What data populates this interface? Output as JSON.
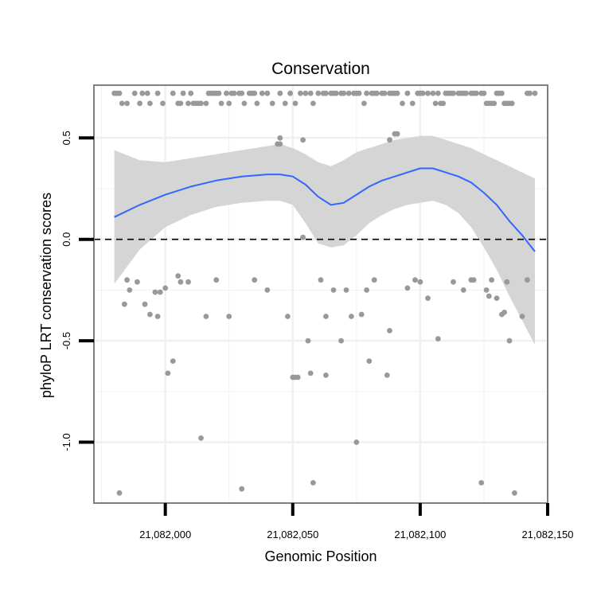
{
  "chart_data": {
    "type": "scatter",
    "title": "Conservation",
    "xlabel": "Genomic Position",
    "ylabel": "phyloP LRT conservation scores",
    "xlim": [
      21081972,
      21082150
    ],
    "ylim": [
      -1.3,
      0.76
    ],
    "x_ticks": [
      21082000,
      21082050,
      21082100,
      21082150
    ],
    "x_tick_labels": [
      "21,082,000",
      "21,082,050",
      "21,082,100",
      "21,082,150"
    ],
    "y_ticks": [
      0.5,
      0.0,
      -0.5,
      -1.0
    ],
    "y_tick_labels": [
      "0.5",
      "0.0",
      "-0.5",
      "-1.0"
    ],
    "reference_line": {
      "y": 0.0,
      "style": "dashed"
    },
    "grid": true,
    "points": [
      [
        21081980,
        0.72
      ],
      [
        21081981,
        0.72
      ],
      [
        21081982,
        0.72
      ],
      [
        21081983,
        0.67
      ],
      [
        21081985,
        0.67
      ],
      [
        21081988,
        0.72
      ],
      [
        21081990,
        0.67
      ],
      [
        21081991,
        0.72
      ],
      [
        21081993,
        0.72
      ],
      [
        21081994,
        0.67
      ],
      [
        21081997,
        0.72
      ],
      [
        21081999,
        0.67
      ],
      [
        21082003,
        0.72
      ],
      [
        21082005,
        0.67
      ],
      [
        21082006,
        0.67
      ],
      [
        21082007,
        0.72
      ],
      [
        21082009,
        0.67
      ],
      [
        21082010,
        0.72
      ],
      [
        21082011,
        0.67
      ],
      [
        21082012,
        0.67
      ],
      [
        21082013,
        0.67
      ],
      [
        21082014,
        0.67
      ],
      [
        21082016,
        0.67
      ],
      [
        21082017,
        0.72
      ],
      [
        21082018,
        0.72
      ],
      [
        21082019,
        0.72
      ],
      [
        21082020,
        0.72
      ],
      [
        21082021,
        0.72
      ],
      [
        21082022,
        0.67
      ],
      [
        21082024,
        0.72
      ],
      [
        21082025,
        0.67
      ],
      [
        21082026,
        0.72
      ],
      [
        21082027,
        0.72
      ],
      [
        21082029,
        0.72
      ],
      [
        21082030,
        0.72
      ],
      [
        21082031,
        0.67
      ],
      [
        21082033,
        0.72
      ],
      [
        21082034,
        0.72
      ],
      [
        21082035,
        0.72
      ],
      [
        21082036,
        0.67
      ],
      [
        21082038,
        0.72
      ],
      [
        21082040,
        0.72
      ],
      [
        21082042,
        0.67
      ],
      [
        21082045,
        0.72
      ],
      [
        21082047,
        0.67
      ],
      [
        21082049,
        0.72
      ],
      [
        21082051,
        0.67
      ],
      [
        21082053,
        0.72
      ],
      [
        21082055,
        0.72
      ],
      [
        21082057,
        0.72
      ],
      [
        21082058,
        0.67
      ],
      [
        21082060,
        0.72
      ],
      [
        21082062,
        0.72
      ],
      [
        21082063,
        0.72
      ],
      [
        21082065,
        0.72
      ],
      [
        21082066,
        0.72
      ],
      [
        21082067,
        0.72
      ],
      [
        21082069,
        0.72
      ],
      [
        21082070,
        0.72
      ],
      [
        21082072,
        0.72
      ],
      [
        21082074,
        0.72
      ],
      [
        21082075,
        0.72
      ],
      [
        21082076,
        0.72
      ],
      [
        21082078,
        0.67
      ],
      [
        21082079,
        0.72
      ],
      [
        21082081,
        0.72
      ],
      [
        21082082,
        0.72
      ],
      [
        21082083,
        0.72
      ],
      [
        21082085,
        0.72
      ],
      [
        21082086,
        0.72
      ],
      [
        21082088,
        0.72
      ],
      [
        21082089,
        0.72
      ],
      [
        21082090,
        0.72
      ],
      [
        21082091,
        0.72
      ],
      [
        21082093,
        0.67
      ],
      [
        21082095,
        0.72
      ],
      [
        21082097,
        0.67
      ],
      [
        21082099,
        0.72
      ],
      [
        21082100,
        0.72
      ],
      [
        21082101,
        0.72
      ],
      [
        21082103,
        0.72
      ],
      [
        21082105,
        0.72
      ],
      [
        21082106,
        0.67
      ],
      [
        21082107,
        0.72
      ],
      [
        21082108,
        0.67
      ],
      [
        21082109,
        0.67
      ],
      [
        21082110,
        0.72
      ],
      [
        21082111,
        0.72
      ],
      [
        21082112,
        0.72
      ],
      [
        21082113,
        0.72
      ],
      [
        21082115,
        0.72
      ],
      [
        21082116,
        0.72
      ],
      [
        21082117,
        0.72
      ],
      [
        21082118,
        0.72
      ],
      [
        21082120,
        0.72
      ],
      [
        21082121,
        0.72
      ],
      [
        21082122,
        0.72
      ],
      [
        21082124,
        0.72
      ],
      [
        21082125,
        0.72
      ],
      [
        21082126,
        0.67
      ],
      [
        21082127,
        0.67
      ],
      [
        21082128,
        0.67
      ],
      [
        21082129,
        0.67
      ],
      [
        21082130,
        0.72
      ],
      [
        21082131,
        0.72
      ],
      [
        21082132,
        0.72
      ],
      [
        21082133,
        0.67
      ],
      [
        21082134,
        0.67
      ],
      [
        21082135,
        0.67
      ],
      [
        21082136,
        0.67
      ],
      [
        21082142,
        0.72
      ],
      [
        21082143,
        0.72
      ],
      [
        21082145,
        0.72
      ],
      [
        21082044,
        0.47
      ],
      [
        21082045,
        0.47
      ],
      [
        21082045,
        0.5
      ],
      [
        21082054,
        0.49
      ],
      [
        21082088,
        0.49
      ],
      [
        21082090,
        0.52
      ],
      [
        21082091,
        0.52
      ],
      [
        21082054,
        0.01
      ],
      [
        21081982,
        -1.25
      ],
      [
        21081984,
        -0.32
      ],
      [
        21081985,
        -0.2
      ],
      [
        21081986,
        -0.25
      ],
      [
        21081989,
        -0.21
      ],
      [
        21081992,
        -0.32
      ],
      [
        21081994,
        -0.37
      ],
      [
        21081996,
        -0.26
      ],
      [
        21081997,
        -0.38
      ],
      [
        21081998,
        -0.26
      ],
      [
        21082000,
        -0.24
      ],
      [
        21082001,
        -0.66
      ],
      [
        21082003,
        -0.6
      ],
      [
        21082005,
        -0.18
      ],
      [
        21082006,
        -0.21
      ],
      [
        21082009,
        -0.21
      ],
      [
        21082014,
        -0.98
      ],
      [
        21082016,
        -0.38
      ],
      [
        21082020,
        -0.2
      ],
      [
        21082025,
        -0.38
      ],
      [
        21082030,
        -1.23
      ],
      [
        21082035,
        -0.2
      ],
      [
        21082040,
        -0.25
      ],
      [
        21082048,
        -0.38
      ],
      [
        21082050,
        -0.68
      ],
      [
        21082051,
        -0.68
      ],
      [
        21082052,
        -0.68
      ],
      [
        21082056,
        -0.5
      ],
      [
        21082057,
        -0.66
      ],
      [
        21082058,
        -1.2
      ],
      [
        21082061,
        -0.2
      ],
      [
        21082063,
        -0.38
      ],
      [
        21082063,
        -0.67
      ],
      [
        21082066,
        -0.25
      ],
      [
        21082069,
        -0.5
      ],
      [
        21082071,
        -0.25
      ],
      [
        21082073,
        -0.38
      ],
      [
        21082075,
        -1.0
      ],
      [
        21082077,
        -0.37
      ],
      [
        21082079,
        -0.25
      ],
      [
        21082080,
        -0.6
      ],
      [
        21082082,
        -0.2
      ],
      [
        21082087,
        -0.67
      ],
      [
        21082088,
        -0.45
      ],
      [
        21082095,
        -0.24
      ],
      [
        21082098,
        -0.2
      ],
      [
        21082100,
        -0.21
      ],
      [
        21082103,
        -0.29
      ],
      [
        21082107,
        -0.49
      ],
      [
        21082113,
        -0.21
      ],
      [
        21082117,
        -0.25
      ],
      [
        21082120,
        -0.2
      ],
      [
        21082121,
        -0.2
      ],
      [
        21082124,
        -1.2
      ],
      [
        21082126,
        -0.25
      ],
      [
        21082127,
        -0.28
      ],
      [
        21082128,
        -0.2
      ],
      [
        21082130,
        -0.29
      ],
      [
        21082132,
        -0.37
      ],
      [
        21082133,
        -0.36
      ],
      [
        21082134,
        -0.21
      ],
      [
        21082135,
        -0.5
      ],
      [
        21082137,
        -1.25
      ],
      [
        21082140,
        -0.38
      ],
      [
        21082142,
        -0.2
      ]
    ],
    "smooth": {
      "x": [
        21081980,
        21081990,
        21082000,
        21082010,
        21082020,
        21082030,
        21082040,
        21082045,
        21082050,
        21082055,
        21082060,
        21082065,
        21082070,
        21082075,
        21082080,
        21082085,
        21082090,
        21082095,
        21082100,
        21082105,
        21082110,
        21082115,
        21082120,
        21082125,
        21082130,
        21082135,
        21082140,
        21082145
      ],
      "y": [
        0.11,
        0.17,
        0.22,
        0.26,
        0.29,
        0.31,
        0.32,
        0.32,
        0.31,
        0.27,
        0.21,
        0.17,
        0.18,
        0.22,
        0.26,
        0.29,
        0.31,
        0.33,
        0.35,
        0.35,
        0.33,
        0.31,
        0.28,
        0.23,
        0.17,
        0.09,
        0.02,
        -0.06
      ],
      "lower": [
        -0.22,
        -0.05,
        0.06,
        0.12,
        0.16,
        0.18,
        0.19,
        0.19,
        0.17,
        0.08,
        -0.02,
        -0.04,
        -0.03,
        0.02,
        0.08,
        0.12,
        0.15,
        0.17,
        0.18,
        0.19,
        0.17,
        0.13,
        0.06,
        -0.04,
        -0.15,
        -0.28,
        -0.4,
        -0.52
      ],
      "upper": [
        0.44,
        0.39,
        0.38,
        0.4,
        0.42,
        0.44,
        0.46,
        0.47,
        0.45,
        0.42,
        0.38,
        0.36,
        0.39,
        0.43,
        0.45,
        0.47,
        0.49,
        0.5,
        0.51,
        0.51,
        0.49,
        0.47,
        0.45,
        0.42,
        0.39,
        0.36,
        0.33,
        0.3
      ]
    },
    "colors": {
      "points": "#999999",
      "smooth_line": "#3366ff",
      "ribbon": "#d3d3d3",
      "grid": "#f0f0f0",
      "panel_border": "#7f7f7f"
    }
  }
}
